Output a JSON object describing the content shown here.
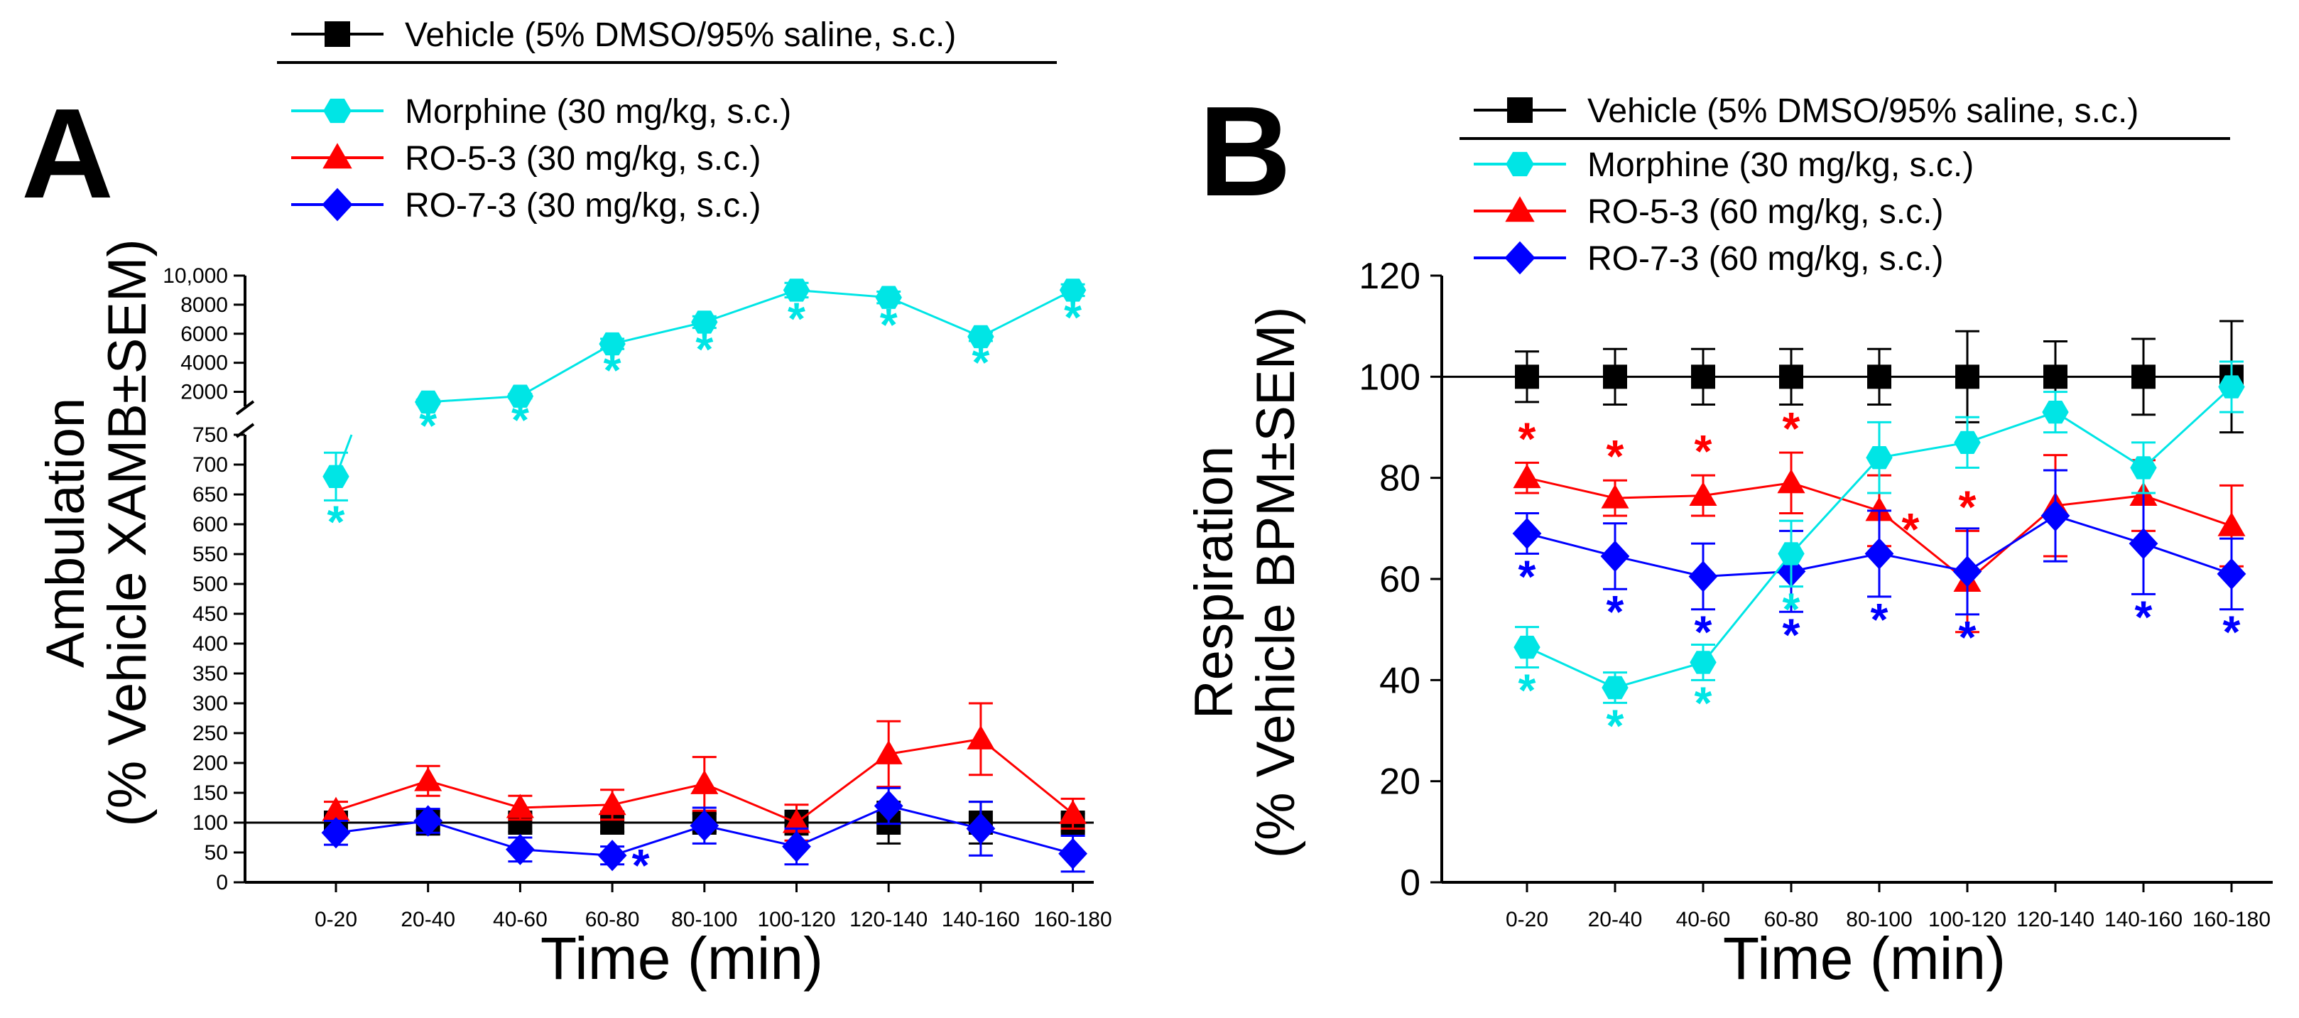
{
  "colors": {
    "vehicle": "#000000",
    "morphine": "#00e5e5",
    "ro53": "#ff0000",
    "ro73": "#0000ff",
    "axis": "#000000"
  },
  "star": "*",
  "chart_data": [
    {
      "panel_label": "A",
      "type": "line",
      "xlabel": "Time (min)",
      "ylabel_line1": "Ambulation",
      "ylabel_line2": "(% Vehicle XAMB±SEM)",
      "categories": [
        "0-20",
        "20-40",
        "40-60",
        "60-80",
        "80-100",
        "100-120",
        "120-140",
        "140-160",
        "160-180"
      ],
      "y_axis_broken": true,
      "lower_ylim": [
        0,
        750
      ],
      "lower_ticks": [
        0,
        50,
        100,
        150,
        200,
        250,
        300,
        350,
        400,
        450,
        500,
        550,
        600,
        650,
        700,
        750
      ],
      "lower_tick_labels": [
        "0",
        "50",
        "100",
        "150",
        "200",
        "250",
        "300",
        "350",
        "400",
        "450",
        "500",
        "550",
        "600",
        "650",
        "700",
        "750"
      ],
      "upper_ylim": [
        1000,
        10000
      ],
      "upper_ticks": [
        2000,
        4000,
        6000,
        8000,
        10000
      ],
      "upper_tick_labels": [
        "2000",
        "4000",
        "6000",
        "8000",
        "10,000"
      ],
      "legend": [
        {
          "key": "vehicle",
          "label": "Vehicle (5% DMSO/95% saline, s.c.)"
        },
        {
          "key": "morphine",
          "label": "Morphine (30 mg/kg, s.c.)"
        },
        {
          "key": "ro53",
          "label": "RO-5-3 (30 mg/kg, s.c.)"
        },
        {
          "key": "ro73",
          "label": "RO-7-3 (30 mg/kg, s.c.)"
        }
      ],
      "series": [
        {
          "key": "vehicle",
          "marker": "square",
          "values": [
            100,
            100,
            100,
            100,
            100,
            100,
            100,
            100,
            100
          ],
          "errors": [
            15,
            20,
            15,
            15,
            15,
            20,
            35,
            35,
            15
          ],
          "stars": [
            false,
            false,
            false,
            false,
            false,
            false,
            false,
            false,
            false
          ]
        },
        {
          "key": "morphine",
          "marker": "hexagon",
          "values": [
            680,
            1300,
            1700,
            5300,
            6800,
            9000,
            8500,
            5800,
            9000
          ],
          "errors": [
            40,
            150,
            150,
            350,
            400,
            500,
            400,
            300,
            400
          ],
          "stars": [
            true,
            true,
            true,
            true,
            true,
            true,
            true,
            true,
            true
          ]
        },
        {
          "key": "ro53",
          "marker": "triangle",
          "values": [
            120,
            170,
            125,
            130,
            165,
            100,
            215,
            240,
            115
          ],
          "errors": [
            15,
            25,
            20,
            25,
            45,
            30,
            55,
            60,
            25
          ],
          "stars": [
            false,
            false,
            false,
            false,
            false,
            false,
            false,
            false,
            false
          ]
        },
        {
          "key": "ro73",
          "marker": "diamond",
          "values": [
            83,
            103,
            55,
            45,
            95,
            60,
            128,
            90,
            48
          ],
          "errors": [
            20,
            20,
            20,
            15,
            30,
            30,
            30,
            45,
            30
          ],
          "stars": [
            false,
            false,
            false,
            true,
            false,
            false,
            false,
            false,
            false
          ]
        }
      ]
    },
    {
      "panel_label": "B",
      "type": "line",
      "xlabel": "Time (min)",
      "ylabel_line1": "Respiration",
      "ylabel_line2": "(% Vehicle BPM±SEM)",
      "categories": [
        "0-20",
        "20-40",
        "40-60",
        "60-80",
        "80-100",
        "100-120",
        "120-140",
        "140-160",
        "160-180"
      ],
      "ylim": [
        0,
        120
      ],
      "ticks": [
        0,
        20,
        40,
        60,
        80,
        100,
        120
      ],
      "tick_labels": [
        "0",
        "20",
        "40",
        "60",
        "80",
        "100",
        "120"
      ],
      "legend": [
        {
          "key": "vehicle",
          "label": "Vehicle (5% DMSO/95% saline, s.c.)"
        },
        {
          "key": "morphine",
          "label": "Morphine (30 mg/kg, s.c.)"
        },
        {
          "key": "ro53",
          "label": "RO-5-3 (60 mg/kg, s.c.)"
        },
        {
          "key": "ro73",
          "label": "RO-7-3 (60 mg/kg, s.c.)"
        }
      ],
      "series": [
        {
          "key": "vehicle",
          "marker": "square",
          "values": [
            100,
            100,
            100,
            100,
            100,
            100,
            100,
            100,
            100
          ],
          "errors": [
            5,
            5.5,
            5.5,
            5.5,
            5.5,
            9,
            7,
            7.5,
            11
          ],
          "stars": [
            false,
            false,
            false,
            false,
            false,
            false,
            false,
            false,
            false
          ]
        },
        {
          "key": "morphine",
          "marker": "hexagon",
          "values": [
            46.5,
            38.5,
            43.5,
            65,
            84,
            87,
            93,
            82,
            98
          ],
          "errors": [
            4,
            3,
            3.5,
            6.5,
            7,
            5,
            4,
            5,
            5
          ],
          "stars": [
            true,
            true,
            true,
            true,
            false,
            false,
            false,
            false,
            false
          ]
        },
        {
          "key": "ro53",
          "marker": "triangle",
          "values": [
            80,
            76,
            76.5,
            79,
            73.5,
            59.5,
            74.5,
            76.5,
            70.5
          ],
          "errors": [
            3,
            3.5,
            4,
            6,
            7,
            10,
            10,
            7,
            8
          ],
          "stars": [
            true,
            true,
            true,
            true,
            true,
            true,
            false,
            false,
            false
          ]
        },
        {
          "key": "ro73",
          "marker": "diamond",
          "values": [
            69,
            64.5,
            60.5,
            61.5,
            65,
            61.5,
            72.5,
            67,
            61
          ],
          "errors": [
            4,
            6.5,
            6.5,
            8,
            8.5,
            8.5,
            9,
            10,
            7
          ],
          "stars": [
            true,
            true,
            true,
            true,
            true,
            true,
            false,
            true,
            true
          ]
        }
      ]
    }
  ]
}
